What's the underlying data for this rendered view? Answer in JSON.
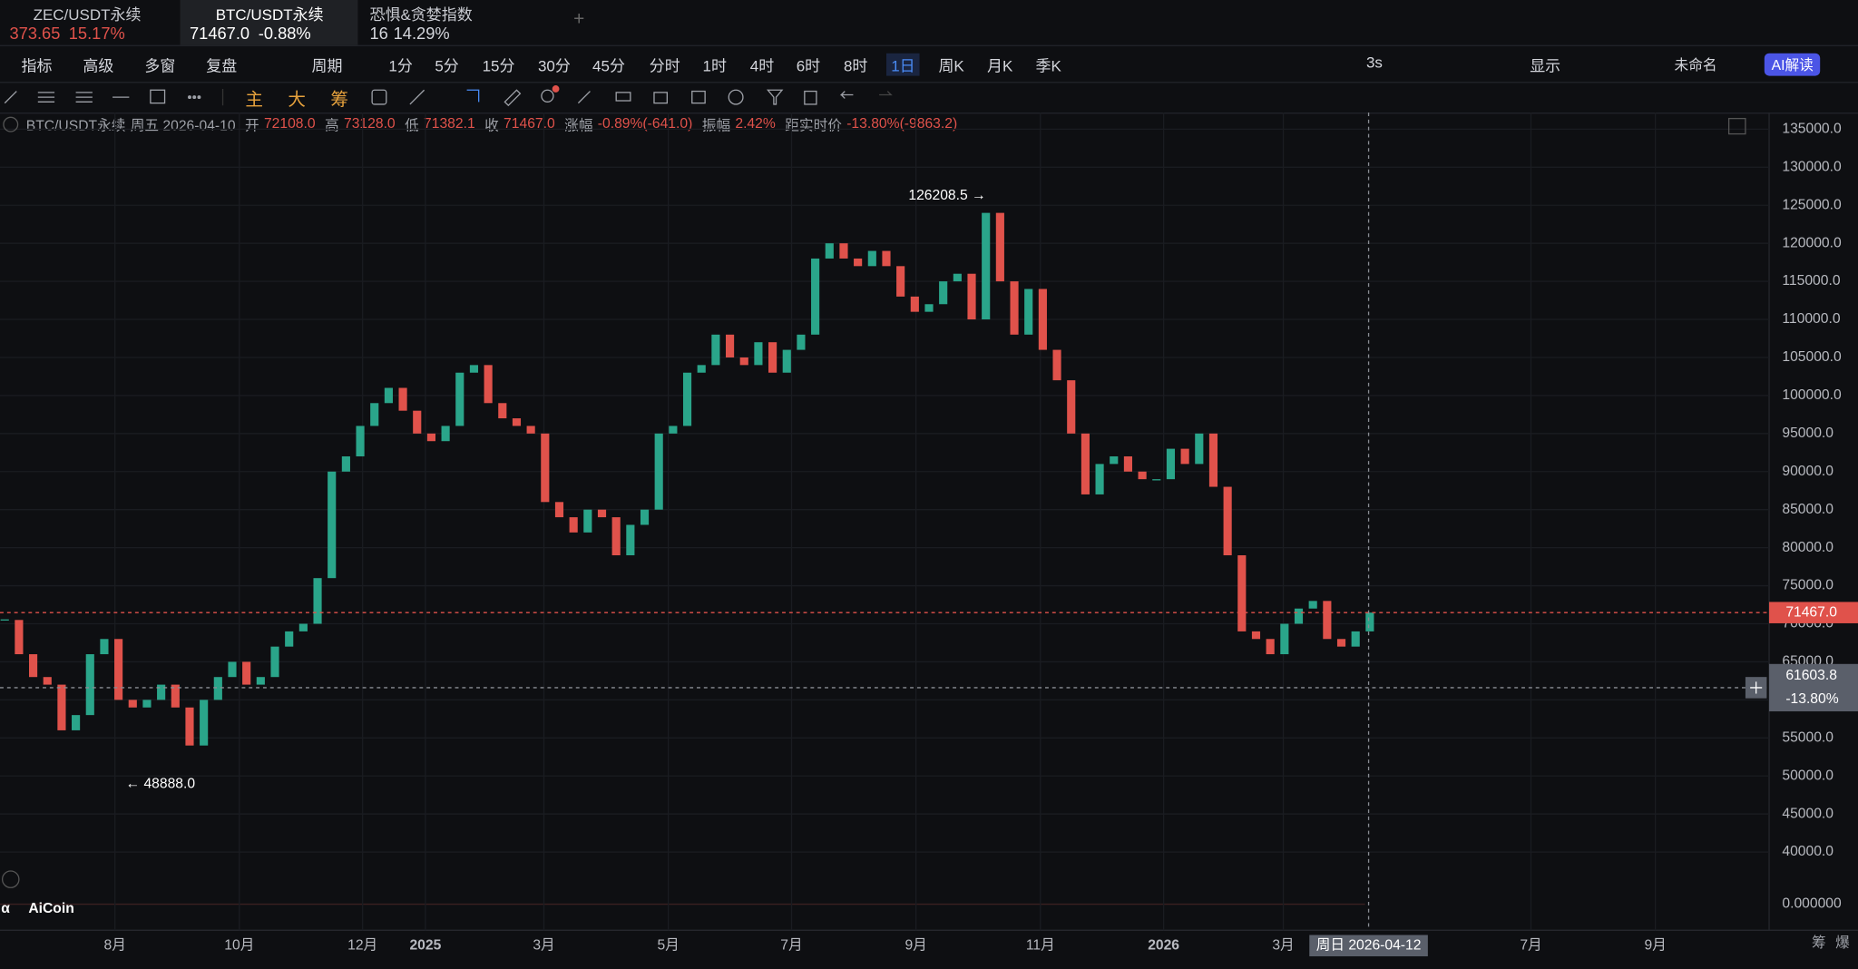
{
  "tabs": [
    {
      "name": "ZEC/USDT永续",
      "price": "373.65",
      "change": "15.17%"
    },
    {
      "name": "BTC/USDT永续",
      "price": "71467.0",
      "change": "-0.88%"
    },
    {
      "name": "恐惧&贪婪指数",
      "price": "16",
      "change": "14.29%"
    }
  ],
  "toolbar": [
    "指标",
    "高级",
    "多窗",
    "复盘",
    "周期",
    "1分",
    "5分",
    "15分",
    "30分",
    "45分",
    "分时",
    "1时",
    "4时",
    "6时",
    "8时",
    "1日",
    "周K",
    "月K",
    "季K"
  ],
  "toolbar_right": [
    "3s",
    "显示",
    "未命名",
    "AI解读"
  ],
  "draw_tools": [
    "主",
    "大",
    "筹"
  ],
  "info": {
    "symbol": "BTC/USDT永续",
    "date": "周五 2026-04-10",
    "fields": [
      [
        "开",
        "72108.0"
      ],
      [
        "高",
        "73128.0"
      ],
      [
        "低",
        "71382.1"
      ],
      [
        "收",
        "71467.0"
      ],
      [
        "涨幅",
        "-0.89%(-641.0)"
      ],
      [
        "振幅",
        "2.42%"
      ],
      [
        "距实时价",
        "-13.80%(-9863.2)"
      ]
    ]
  },
  "brand": "AiCoin",
  "bottom_right": [
    "筹",
    "爆"
  ],
  "chart_data": {
    "type": "candlestick",
    "title": "BTC/USDT永续",
    "values": [
      70500,
      66000,
      63000,
      62000,
      56000,
      58000,
      66000,
      68000,
      60000,
      59000,
      60000,
      62000,
      59000,
      54000,
      60000,
      63000,
      65000,
      62000,
      63000,
      67000,
      69000,
      70000,
      76000,
      90000,
      92000,
      96000,
      99000,
      101000,
      98000,
      95000,
      94000,
      96000,
      103000,
      104000,
      99000,
      97000,
      96000,
      95000,
      86000,
      84000,
      82000,
      85000,
      84000,
      79000,
      83000,
      85000,
      95000,
      96000,
      103000,
      104000,
      108000,
      105000,
      104000,
      107000,
      103000,
      106000,
      108000,
      118000,
      120000,
      118000,
      117000,
      119000,
      117000,
      113000,
      111000,
      112000,
      115000,
      116000,
      110000,
      124000,
      115000,
      108000,
      114000,
      106000,
      102000,
      95000,
      87000,
      91000,
      92000,
      90000,
      89000,
      89000,
      93000,
      91000,
      95000,
      88000,
      79000,
      69000,
      68000,
      66000,
      70000,
      72000,
      73000,
      68000,
      67000,
      69000,
      71467
    ],
    "xlabels": [
      "8月",
      "10月",
      "12月",
      "2025",
      "3月",
      "5月",
      "7月",
      "9月",
      "11月",
      "2026",
      "3月",
      "7月",
      "9月"
    ],
    "ylim": [
      40000,
      135000
    ],
    "yticks": [
      {
        "value": 135000,
        "label": "135000.0"
      },
      {
        "value": 130000,
        "label": "130000.0"
      },
      {
        "value": 125000,
        "label": "125000.0"
      },
      {
        "value": 120000,
        "label": "120000.0"
      },
      {
        "value": 115000,
        "label": "115000.0"
      },
      {
        "value": 110000,
        "label": "110000.0"
      },
      {
        "value": 105000,
        "label": "105000.0"
      },
      {
        "value": 100000,
        "label": "100000.0"
      },
      {
        "value": 95000,
        "label": "95000.0"
      },
      {
        "value": 90000,
        "label": "90000.0"
      },
      {
        "value": 85000,
        "label": "85000.0"
      },
      {
        "value": 80000,
        "label": "80000.0"
      },
      {
        "value": 75000,
        "label": "75000.0"
      },
      {
        "value": 70000,
        "label": "70000.0"
      },
      {
        "value": 65000,
        "label": "65000.0"
      },
      {
        "value": 60000,
        "label": "60000.0"
      },
      {
        "value": 55000,
        "label": "55000.0"
      },
      {
        "value": 50000,
        "label": "50000.0"
      },
      {
        "value": 45000,
        "label": "45000.0"
      },
      {
        "value": 40000,
        "label": "40000.0"
      }
    ],
    "volume_label": "0.000000",
    "high_mark": {
      "value": 126208.5,
      "label": "126208.5 →"
    },
    "low_mark": {
      "value": 48888,
      "label": "← 48888.0"
    },
    "price_tag": {
      "value": 71467,
      "label": "71467.0"
    },
    "cursor": {
      "value": 61603.8,
      "label": "61603.8",
      "pct": "-13.80%",
      "date": "周日 2026-04-12"
    },
    "up_color": "#2aa58a",
    "down_color": "#e0524b",
    "grid": true
  }
}
